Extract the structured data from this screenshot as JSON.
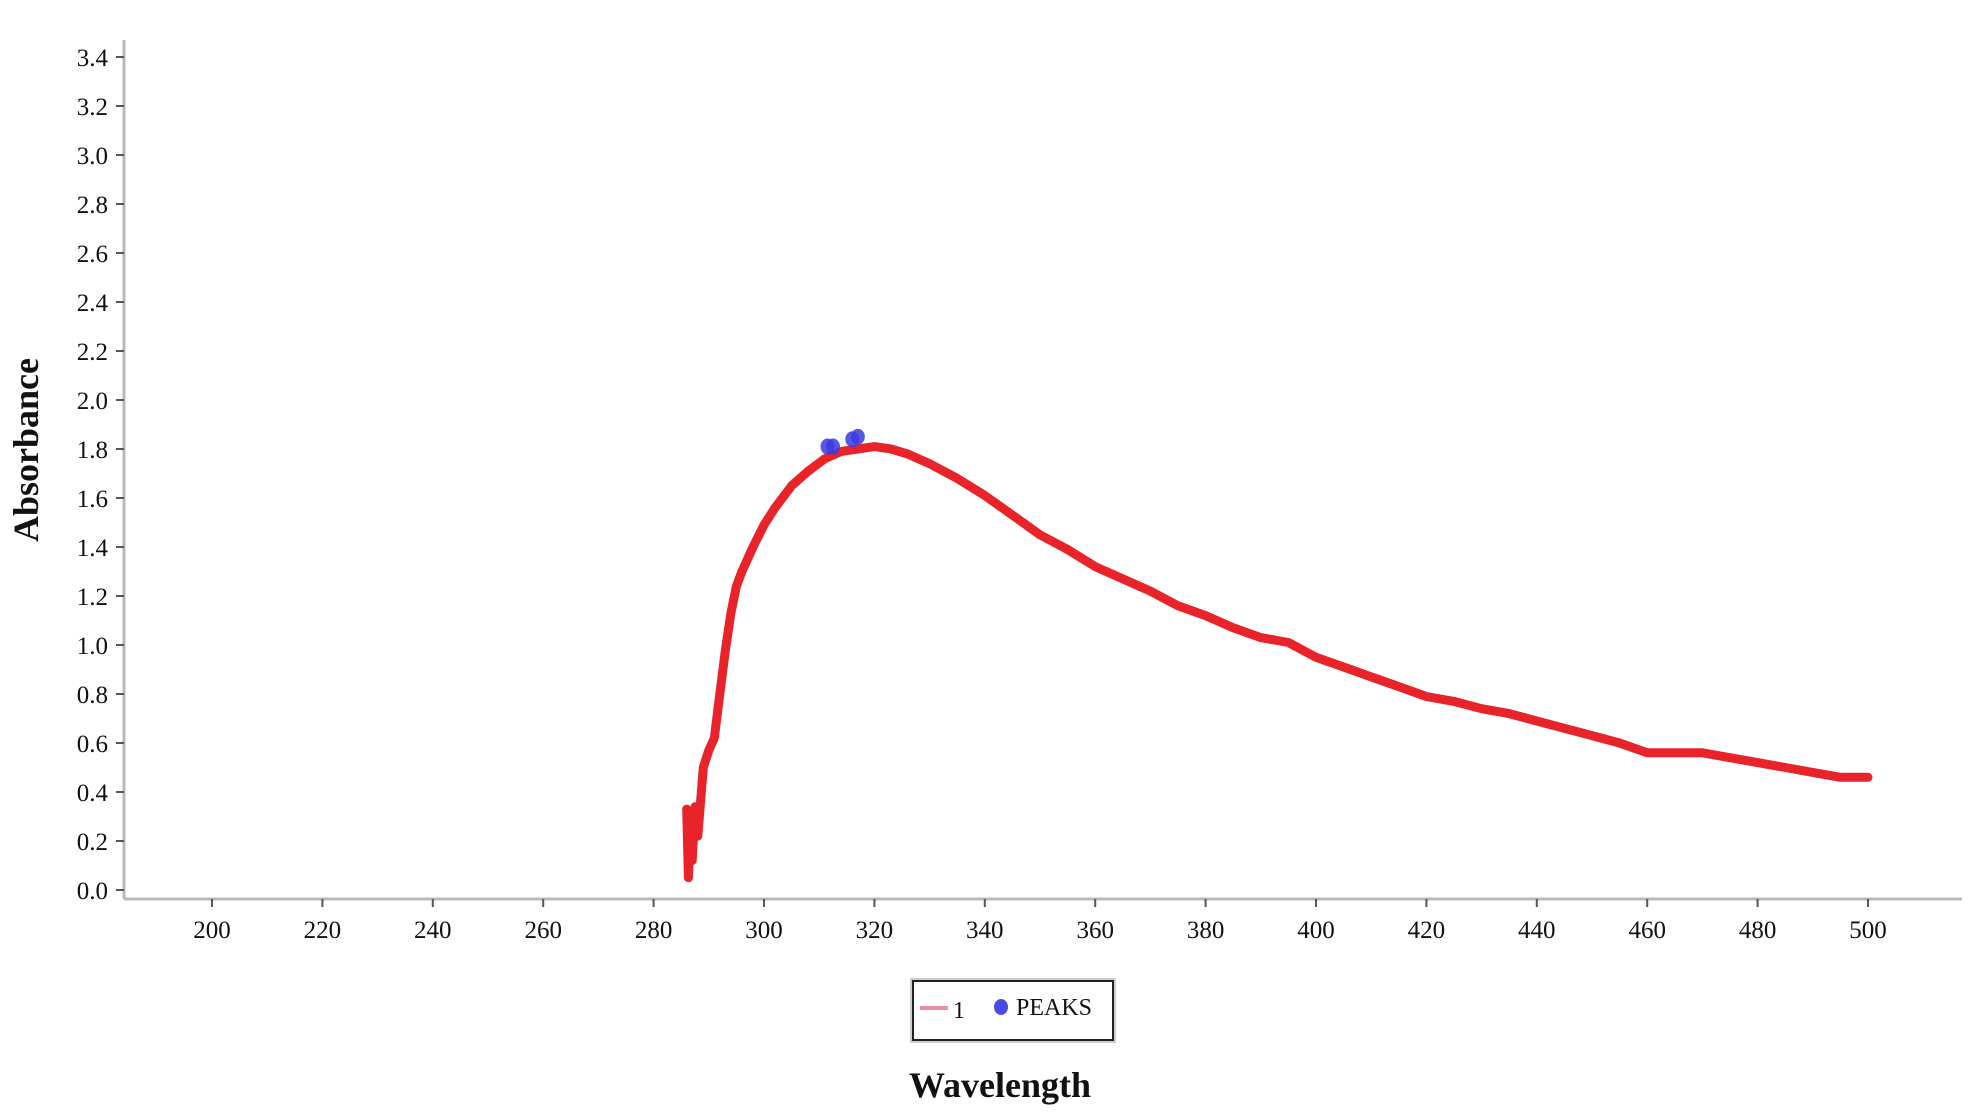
{
  "chart_data": {
    "type": "line",
    "title": "",
    "xlabel": "Wavelength",
    "ylabel": "Absorbance",
    "xlim": [
      185,
      515
    ],
    "ylim": [
      0,
      3.45
    ],
    "x_ticks": [
      "200",
      "220",
      "240",
      "260",
      "280",
      "300",
      "320",
      "340",
      "360",
      "380",
      "400",
      "420",
      "440",
      "460",
      "480",
      "500"
    ],
    "y_ticks": [
      "0.0",
      "0.2",
      "0.4",
      "0.6",
      "0.8",
      "1.0",
      "1.2",
      "1.4",
      "1.6",
      "1.8",
      "2.0",
      "2.2",
      "2.4",
      "2.6",
      "2.8",
      "3.0",
      "3.2",
      "3.4"
    ],
    "grid": false,
    "legend_placement": "bottom-center",
    "series": [
      {
        "name": "1",
        "color": "#e8232a",
        "x": [
          286.0,
          286.3,
          286.6,
          287.0,
          287.5,
          288.0,
          289.0,
          290.0,
          291.0,
          292.0,
          293.0,
          294.0,
          295.0,
          296.0,
          298.0,
          300.0,
          302.0,
          305.0,
          308.0,
          311.0,
          314.0,
          317.0,
          320.0,
          323.0,
          326.0,
          330.0,
          335.0,
          340.0,
          345.0,
          350.0,
          355.0,
          360.0,
          365.0,
          370.0,
          375.0,
          380.0,
          385.0,
          390.0,
          395.0,
          400.0,
          405.0,
          410.0,
          415.0,
          420.0,
          425.0,
          430.0,
          435.0,
          440.0,
          445.0,
          450.0,
          455.0,
          460.0,
          465.0,
          470.0,
          475.0,
          480.0,
          485.0,
          490.0,
          495.0,
          500.0
        ],
        "y": [
          0.33,
          0.05,
          0.28,
          0.12,
          0.34,
          0.22,
          0.5,
          0.57,
          0.62,
          0.8,
          0.98,
          1.13,
          1.24,
          1.3,
          1.4,
          1.49,
          1.56,
          1.65,
          1.71,
          1.76,
          1.79,
          1.8,
          1.81,
          1.8,
          1.78,
          1.74,
          1.68,
          1.61,
          1.53,
          1.45,
          1.39,
          1.32,
          1.27,
          1.22,
          1.16,
          1.12,
          1.07,
          1.03,
          1.01,
          0.95,
          0.91,
          0.87,
          0.83,
          0.79,
          0.77,
          0.74,
          0.72,
          0.69,
          0.66,
          0.63,
          0.6,
          0.56,
          0.56,
          0.56,
          0.54,
          0.52,
          0.5,
          0.48,
          0.46,
          0.46
        ]
      },
      {
        "name": "PEAKS",
        "color": "#3a3ae0",
        "type": "scatter",
        "x": [
          311.5,
          312.5,
          316.0,
          317.0
        ],
        "y": [
          1.81,
          1.81,
          1.84,
          1.85
        ]
      }
    ]
  }
}
